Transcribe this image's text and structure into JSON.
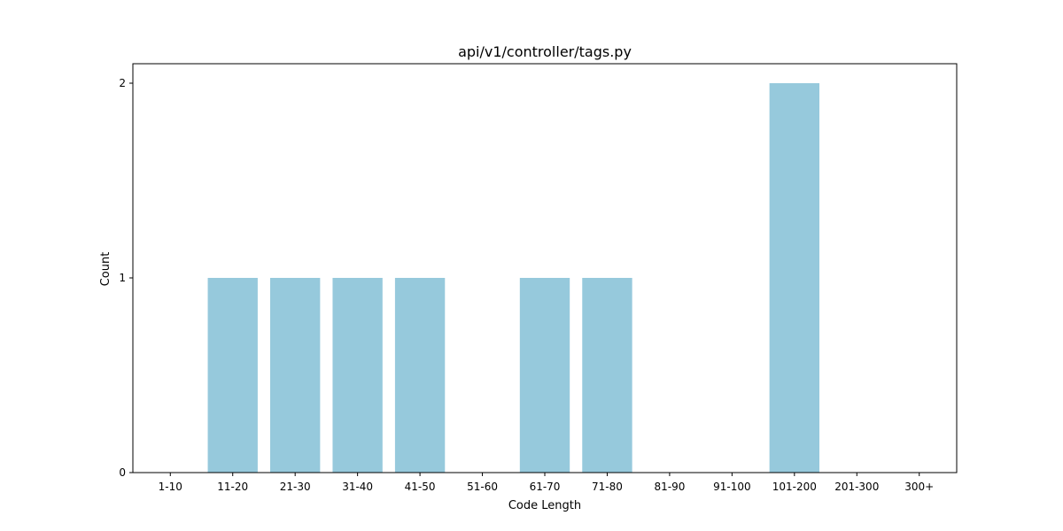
{
  "chart_data": {
    "type": "bar",
    "title": "api/v1/controller/tags.py",
    "xlabel": "Code Length",
    "ylabel": "Count",
    "categories": [
      "1-10",
      "11-20",
      "21-30",
      "31-40",
      "41-50",
      "51-60",
      "61-70",
      "71-80",
      "81-90",
      "91-100",
      "101-200",
      "201-300",
      "300+"
    ],
    "values": [
      0,
      1,
      1,
      1,
      1,
      0,
      1,
      1,
      0,
      0,
      2,
      0,
      0
    ],
    "ylim": [
      0,
      2.1
    ],
    "yticks": [
      0,
      1,
      2
    ],
    "grid": false,
    "legend": "none",
    "bar_color": "#96c9dc",
    "axis_color": "#000000"
  }
}
